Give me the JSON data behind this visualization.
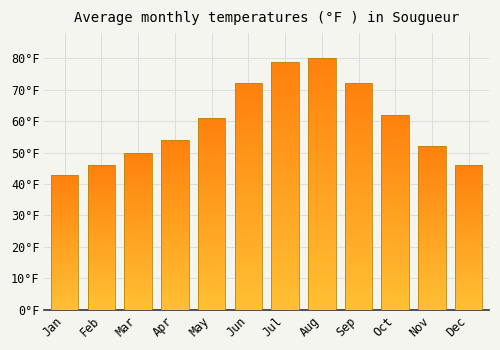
{
  "title": "Average monthly temperatures (°F ) in Sougueur",
  "months": [
    "Jan",
    "Feb",
    "Mar",
    "Apr",
    "May",
    "Jun",
    "Jul",
    "Aug",
    "Sep",
    "Oct",
    "Nov",
    "Dec"
  ],
  "values": [
    43,
    46,
    50,
    54,
    61,
    72,
    79,
    80,
    72,
    62,
    52,
    46
  ],
  "bar_color_top": "#FFA500",
  "bar_color_bottom": "#FFCC66",
  "bar_edge_color": "#B8860B",
  "background_color": "#F5F5F0",
  "plot_bg_color": "#F5F5F0",
  "grid_color": "#DDDDDD",
  "ylim": [
    0,
    88
  ],
  "yticks": [
    0,
    10,
    20,
    30,
    40,
    50,
    60,
    70,
    80
  ],
  "title_fontsize": 10,
  "tick_fontsize": 8.5,
  "bar_width": 0.75
}
